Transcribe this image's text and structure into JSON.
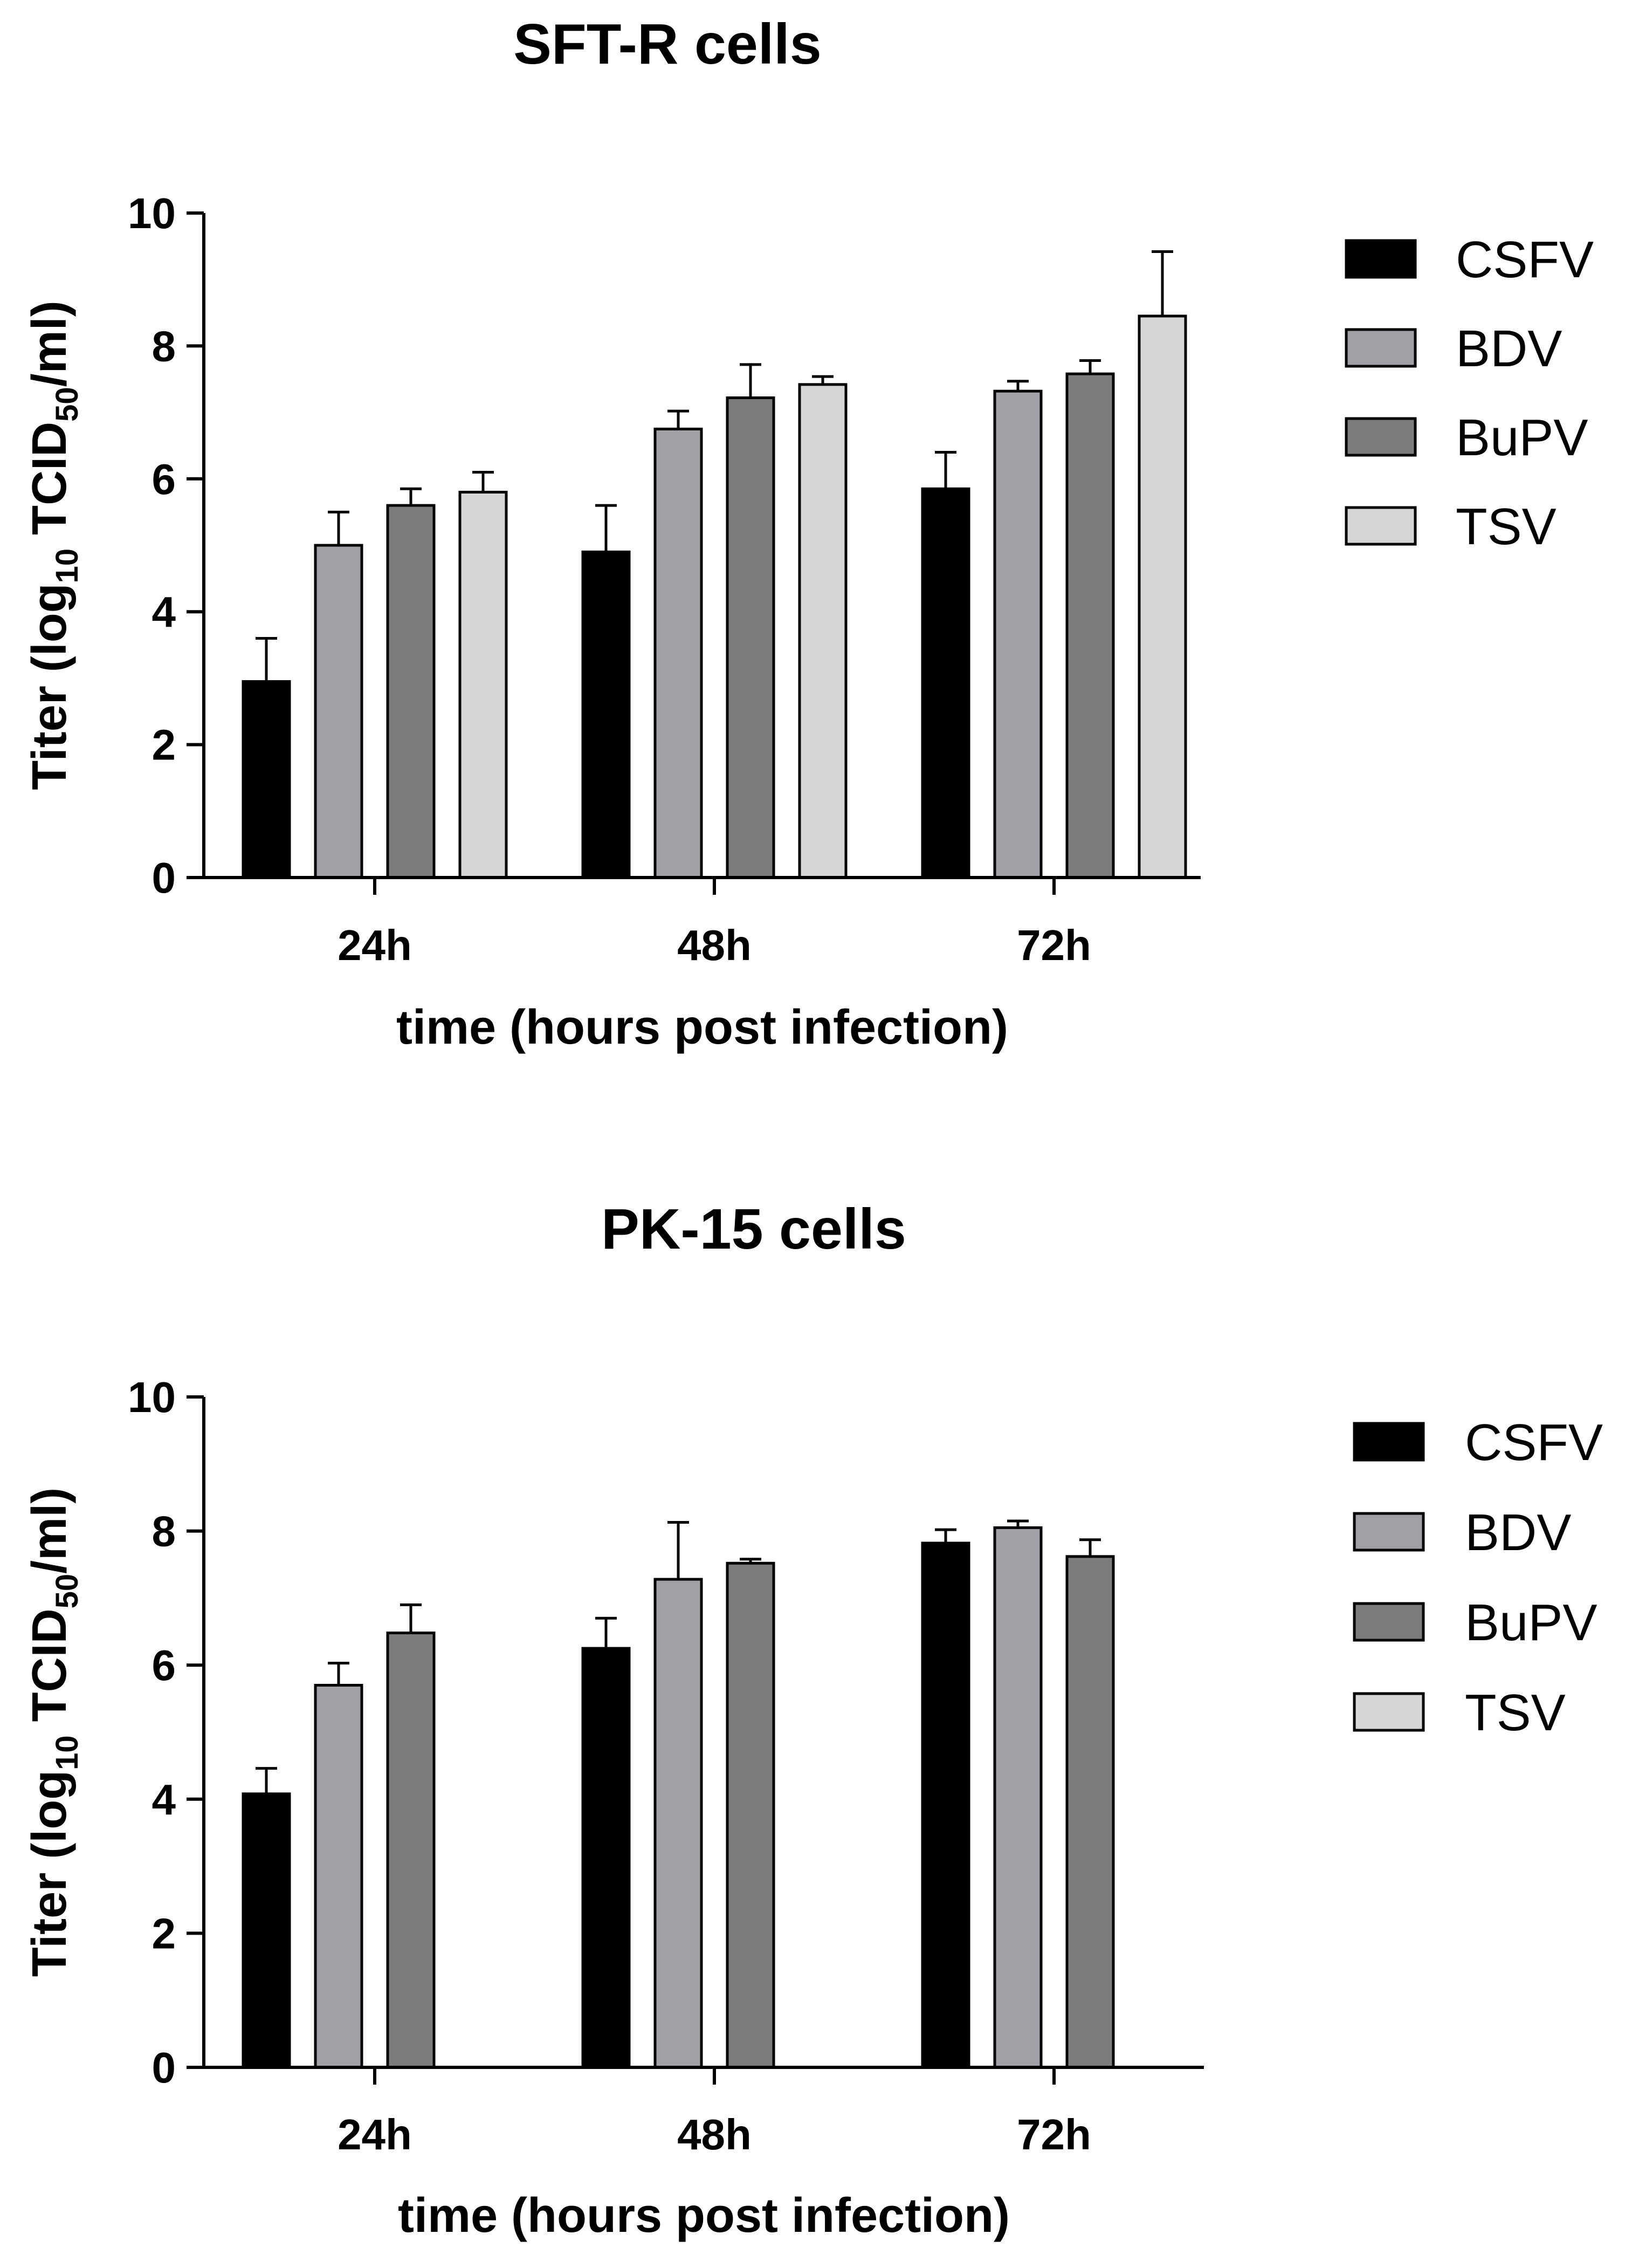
{
  "chart_data": [
    {
      "type": "bar",
      "title": "SFT-R cells",
      "xlabel": "time (hours post infection)",
      "ylabel": {
        "prefix": "Titer (log",
        "sub1": "10",
        "mid": " TCID",
        "sub2": "50",
        "suffix": "/ml)"
      },
      "ylim": [
        0,
        10
      ],
      "yticks": [
        "0",
        "2",
        "4",
        "6",
        "8",
        "10"
      ],
      "categories": [
        "24h",
        "48h",
        "72h"
      ],
      "legend_position": "right",
      "series": [
        {
          "name": "CSFV",
          "color": "#000000",
          "values": [
            2.95,
            4.9,
            5.85
          ],
          "errors": [
            0.65,
            0.7,
            0.55
          ]
        },
        {
          "name": "BDV",
          "color": "#a0a0a6",
          "values": [
            5.0,
            6.75,
            7.32
          ],
          "errors": [
            0.5,
            0.27,
            0.15
          ]
        },
        {
          "name": "BuPV",
          "color": "#7c7c7c",
          "values": [
            5.6,
            7.22,
            7.58
          ],
          "errors": [
            0.25,
            0.5,
            0.2
          ]
        },
        {
          "name": "TSV",
          "color": "#d6d6d6",
          "values": [
            5.8,
            7.42,
            8.45
          ],
          "errors": [
            0.3,
            0.12,
            0.97
          ]
        }
      ]
    },
    {
      "type": "bar",
      "title": "PK-15 cells",
      "xlabel": "time (hours post infection)",
      "ylabel": {
        "prefix": "Titer (log",
        "sub1": "10",
        "mid": " TCID",
        "sub2": "50",
        "suffix": "/ml)"
      },
      "ylim": [
        0,
        10
      ],
      "yticks": [
        "0",
        "2",
        "4",
        "6",
        "8",
        "10"
      ],
      "categories": [
        "24h",
        "48h",
        "72h"
      ],
      "legend_position": "right",
      "series": [
        {
          "name": "CSFV",
          "color": "#000000",
          "values": [
            4.08,
            6.25,
            7.82
          ],
          "errors": [
            0.38,
            0.45,
            0.2
          ]
        },
        {
          "name": "BDV",
          "color": "#a0a0a6",
          "values": [
            5.7,
            7.28,
            8.05
          ],
          "errors": [
            0.33,
            0.85,
            0.1
          ]
        },
        {
          "name": "BuPV",
          "color": "#7c7c7c",
          "values": [
            6.48,
            7.52,
            7.62
          ],
          "errors": [
            0.42,
            0.06,
            0.25
          ]
        },
        {
          "name": "TSV",
          "color": "#d6d6d6",
          "values": [
            null,
            null,
            null
          ],
          "errors": [
            null,
            null,
            null
          ]
        }
      ]
    }
  ]
}
